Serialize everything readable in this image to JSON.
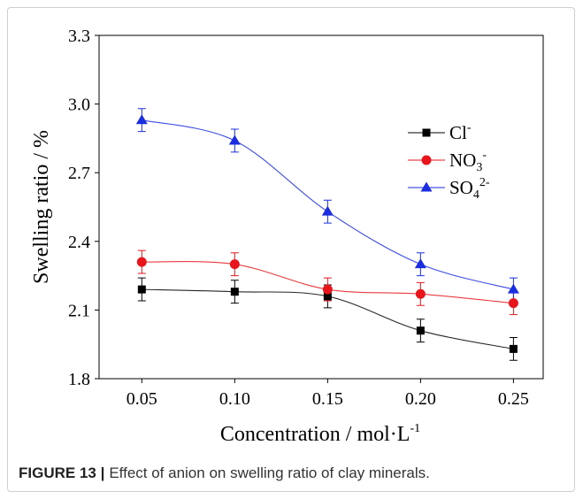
{
  "chart_data": {
    "type": "line",
    "x": [
      0.05,
      0.1,
      0.15,
      0.2,
      0.25
    ],
    "xticks": [
      "0.05",
      "0.10",
      "0.15",
      "0.20",
      "0.25"
    ],
    "yticks": [
      "1.8",
      "2.1",
      "2.4",
      "2.7",
      "3.0",
      "3.3"
    ],
    "xlim": [
      0.027,
      0.266
    ],
    "ylim": [
      1.8,
      3.3
    ],
    "xlabel": "Concentration / mol·L",
    "xlabel_sup": "-1",
    "ylabel": "Swelling ratio / %",
    "grid": false,
    "legend_position": "top-right",
    "series": [
      {
        "name": "Cl",
        "name_sup": "-",
        "marker": "square",
        "color": "#000000",
        "values": [
          2.19,
          2.18,
          2.16,
          2.01,
          1.93
        ],
        "errors": [
          0.05,
          0.05,
          0.05,
          0.05,
          0.05
        ]
      },
      {
        "name": "NO",
        "name_sub": "3",
        "name_sup": "-",
        "marker": "circle",
        "color": "#e8161c",
        "values": [
          2.31,
          2.3,
          2.19,
          2.17,
          2.13
        ],
        "errors": [
          0.05,
          0.05,
          0.05,
          0.05,
          0.05
        ]
      },
      {
        "name": "SO",
        "name_sub": "4",
        "name_sup": "2-",
        "marker": "triangle",
        "color": "#1a2ee0",
        "values": [
          2.93,
          2.84,
          2.53,
          2.3,
          2.19
        ],
        "errors": [
          0.05,
          0.05,
          0.05,
          0.05,
          0.05
        ]
      }
    ]
  },
  "caption": {
    "label": "FIGURE 13 |",
    "text": "Effect of anion on swelling ratio of clay minerals."
  }
}
